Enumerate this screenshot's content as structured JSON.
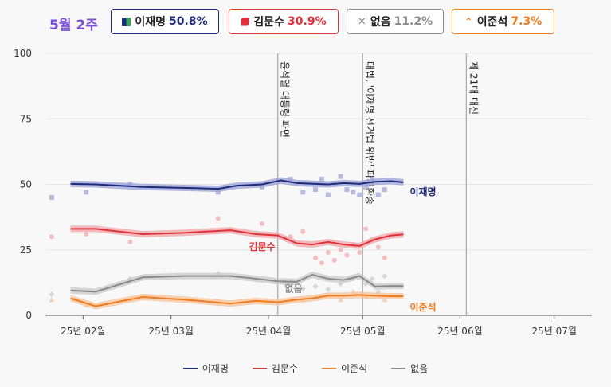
{
  "header": {
    "week_label": "5월 2주",
    "badges": [
      {
        "name": "이재명",
        "value": "50.8%",
        "color": "#1f2a7a",
        "border": "#1f2a7a",
        "icon": "square-icon"
      },
      {
        "name": "김문수",
        "value": "30.9%",
        "color": "#e0303a",
        "border": "#e0303a",
        "icon": "hexagon-icon"
      },
      {
        "name": "없음",
        "value": "11.2%",
        "color": "#8a8a8a",
        "border": "#8a8a8a",
        "icon": "x-icon"
      },
      {
        "name": "이준석",
        "value": "7.3%",
        "color": "#f07c1e",
        "border": "#f07c1e",
        "icon": "chevron-up-icon"
      }
    ]
  },
  "chart_data": {
    "type": "line",
    "ylim": [
      0,
      100
    ],
    "yticks": [
      0,
      25,
      50,
      75,
      100
    ],
    "xlim": [
      "2025-01-20",
      "2025-07-13"
    ],
    "xticks": [
      {
        "date": "2025-02-01",
        "label": "25년 02월"
      },
      {
        "date": "2025-03-01",
        "label": "25년 03월"
      },
      {
        "date": "2025-04-01",
        "label": "25년 04월"
      },
      {
        "date": "2025-05-01",
        "label": "25년 05월"
      },
      {
        "date": "2025-06-01",
        "label": "25년 06월"
      },
      {
        "date": "2025-07-01",
        "label": "25년 07월"
      }
    ],
    "events": [
      {
        "date": "2025-04-04",
        "label": "윤석열 대통령 파면"
      },
      {
        "date": "2025-05-01",
        "label": "대법, '이재명 선거법 위반' 파기환송"
      },
      {
        "date": "2025-06-03",
        "label": "제 21대 대선"
      }
    ],
    "series": [
      {
        "name": "이재명",
        "color": "#1f2a7a",
        "band": "#9aa0d6",
        "point_shape": "square",
        "end_label": "이재명",
        "points": [
          [
            "2025-01-28",
            50.2
          ],
          [
            "2025-02-05",
            50
          ],
          [
            "2025-02-20",
            49
          ],
          [
            "2025-03-10",
            48.5
          ],
          [
            "2025-03-16",
            48.3
          ],
          [
            "2025-03-22",
            49.5
          ],
          [
            "2025-03-30",
            50
          ],
          [
            "2025-04-05",
            51.5
          ],
          [
            "2025-04-10",
            50.5
          ],
          [
            "2025-04-20",
            50
          ],
          [
            "2025-04-25",
            50.5
          ],
          [
            "2025-04-30",
            50.2
          ],
          [
            "2025-05-05",
            51
          ],
          [
            "2025-05-10",
            51.2
          ],
          [
            "2025-05-14",
            50.8
          ]
        ],
        "polls": [
          [
            "2025-01-22",
            45
          ],
          [
            "2025-02-02",
            47
          ],
          [
            "2025-02-16",
            50
          ],
          [
            "2025-03-16",
            47
          ],
          [
            "2025-03-30",
            49
          ],
          [
            "2025-04-08",
            52
          ],
          [
            "2025-04-12",
            47
          ],
          [
            "2025-04-16",
            48
          ],
          [
            "2025-04-18",
            52
          ],
          [
            "2025-04-20",
            46
          ],
          [
            "2025-04-22",
            50
          ],
          [
            "2025-04-24",
            53
          ],
          [
            "2025-04-26",
            48
          ],
          [
            "2025-04-28",
            47
          ],
          [
            "2025-04-30",
            46
          ],
          [
            "2025-05-02",
            49
          ],
          [
            "2025-05-04",
            52
          ],
          [
            "2025-05-06",
            46
          ],
          [
            "2025-05-08",
            48
          ]
        ]
      },
      {
        "name": "김문수",
        "color": "#e0303a",
        "band": "#f2a5aa",
        "point_shape": "circle",
        "end_label": "김문수",
        "points": [
          [
            "2025-01-28",
            33
          ],
          [
            "2025-02-05",
            33
          ],
          [
            "2025-02-20",
            31
          ],
          [
            "2025-03-05",
            31.5
          ],
          [
            "2025-03-20",
            32.5
          ],
          [
            "2025-03-28",
            31
          ],
          [
            "2025-04-04",
            30.5
          ],
          [
            "2025-04-10",
            27.5
          ],
          [
            "2025-04-15",
            27
          ],
          [
            "2025-04-20",
            28
          ],
          [
            "2025-04-25",
            27
          ],
          [
            "2025-04-30",
            26.5
          ],
          [
            "2025-05-05",
            29
          ],
          [
            "2025-05-10",
            30.5
          ],
          [
            "2025-05-14",
            30.9
          ]
        ],
        "polls": [
          [
            "2025-01-22",
            30
          ],
          [
            "2025-02-02",
            31
          ],
          [
            "2025-02-16",
            28
          ],
          [
            "2025-03-16",
            37
          ],
          [
            "2025-03-30",
            35
          ],
          [
            "2025-04-08",
            30
          ],
          [
            "2025-04-12",
            32
          ],
          [
            "2025-04-16",
            22
          ],
          [
            "2025-04-18",
            20
          ],
          [
            "2025-04-20",
            24
          ],
          [
            "2025-04-22",
            21
          ],
          [
            "2025-04-24",
            25
          ],
          [
            "2025-04-26",
            23
          ],
          [
            "2025-04-28",
            27
          ],
          [
            "2025-04-30",
            24
          ],
          [
            "2025-05-02",
            33
          ],
          [
            "2025-05-04",
            29
          ],
          [
            "2025-05-06",
            26
          ],
          [
            "2025-05-08",
            22
          ]
        ]
      },
      {
        "name": "이준석",
        "color": "#f07c1e",
        "band": "#f7c199",
        "point_shape": "triangle",
        "end_label": "이준석",
        "points": [
          [
            "2025-01-28",
            6.5
          ],
          [
            "2025-02-05",
            3.5
          ],
          [
            "2025-02-20",
            7
          ],
          [
            "2025-03-05",
            6
          ],
          [
            "2025-03-20",
            4.5
          ],
          [
            "2025-03-28",
            5.5
          ],
          [
            "2025-04-04",
            5
          ],
          [
            "2025-04-10",
            6
          ],
          [
            "2025-04-15",
            6.5
          ],
          [
            "2025-04-20",
            7.5
          ],
          [
            "2025-04-25",
            7.5
          ],
          [
            "2025-04-30",
            7.8
          ],
          [
            "2025-05-05",
            7.5
          ],
          [
            "2025-05-10",
            7.3
          ],
          [
            "2025-05-14",
            7.3
          ]
        ],
        "polls": [
          [
            "2025-01-22",
            6
          ],
          [
            "2025-02-02",
            4
          ],
          [
            "2025-03-16",
            5
          ],
          [
            "2025-04-12",
            6
          ],
          [
            "2025-04-16",
            7
          ],
          [
            "2025-04-20",
            8
          ],
          [
            "2025-04-24",
            6
          ],
          [
            "2025-04-28",
            9
          ],
          [
            "2025-05-02",
            7
          ],
          [
            "2025-05-06",
            8
          ],
          [
            "2025-05-08",
            6
          ]
        ]
      },
      {
        "name": "없음",
        "color": "#8a8a8a",
        "band": "#c9c9c9",
        "point_shape": "diamond",
        "end_label": "없음",
        "points": [
          [
            "2025-01-28",
            9.5
          ],
          [
            "2025-02-05",
            9
          ],
          [
            "2025-02-20",
            14.5
          ],
          [
            "2025-03-05",
            15
          ],
          [
            "2025-03-20",
            15
          ],
          [
            "2025-03-28",
            14
          ],
          [
            "2025-04-04",
            13
          ],
          [
            "2025-04-10",
            12.8
          ],
          [
            "2025-04-15",
            15.5
          ],
          [
            "2025-04-20",
            14
          ],
          [
            "2025-04-25",
            13.5
          ],
          [
            "2025-04-30",
            15
          ],
          [
            "2025-05-05",
            11
          ],
          [
            "2025-05-10",
            11.2
          ],
          [
            "2025-05-14",
            11.2
          ]
        ],
        "polls": [
          [
            "2025-01-22",
            8
          ],
          [
            "2025-02-16",
            14
          ],
          [
            "2025-03-16",
            16
          ],
          [
            "2025-04-08",
            12
          ],
          [
            "2025-04-12",
            10
          ],
          [
            "2025-04-16",
            11
          ],
          [
            "2025-04-20",
            10
          ],
          [
            "2025-04-24",
            12
          ],
          [
            "2025-04-28",
            14
          ],
          [
            "2025-05-02",
            12
          ],
          [
            "2025-05-04",
            14
          ],
          [
            "2025-05-06",
            9
          ],
          [
            "2025-05-08",
            15
          ]
        ]
      }
    ],
    "legend": [
      "이재명",
      "김문수",
      "이준석",
      "없음"
    ],
    "legend_position": "bottom"
  }
}
